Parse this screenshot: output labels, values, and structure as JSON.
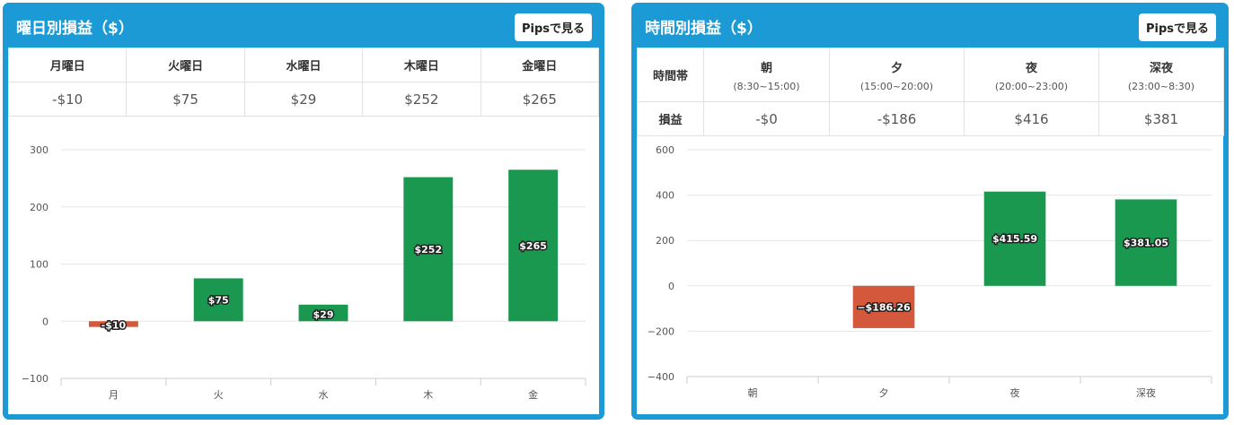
{
  "colors": {
    "panel": "#1b9ad6",
    "positive": "#1a9850",
    "negative": "#d3583c",
    "grid": "#e6e6e6"
  },
  "left": {
    "title": "曜日別損益（$）",
    "pips_button": "Pipsで見る",
    "table": {
      "headers": [
        "月曜日",
        "火曜日",
        "水曜日",
        "木曜日",
        "金曜日"
      ],
      "values": [
        "-$10",
        "$75",
        "$29",
        "$252",
        "$265"
      ]
    }
  },
  "right": {
    "title": "時間別損益（$）",
    "pips_button": "Pipsで見る",
    "table": {
      "row_header_1": "時間帯",
      "row_header_2": "損益",
      "periods": [
        {
          "name": "朝",
          "range": "(8:30~15:00)"
        },
        {
          "name": "夕",
          "range": "(15:00~20:00)"
        },
        {
          "name": "夜",
          "range": "(20:00~23:00)"
        },
        {
          "name": "深夜",
          "range": "(23:00~8:30)"
        }
      ],
      "values": [
        "-$0",
        "-$186",
        "$416",
        "$381"
      ]
    }
  },
  "chart_data": [
    {
      "type": "bar",
      "categories": [
        "月",
        "火",
        "水",
        "木",
        "金"
      ],
      "values": [
        -10,
        75,
        29,
        252,
        265
      ],
      "labels": [
        "-$10",
        "$75",
        "$29",
        "$252",
        "$265"
      ],
      "yticks": [
        "300",
        "200",
        "100",
        "0",
        "−100"
      ],
      "ylim": [
        -100,
        300
      ],
      "grid": true
    },
    {
      "type": "bar",
      "categories": [
        "朝",
        "夕",
        "夜",
        "深夜"
      ],
      "values": [
        0,
        -186.26,
        415.59,
        381.05
      ],
      "labels": [
        "",
        "−$186.26",
        "$415.59",
        "$381.05"
      ],
      "yticks": [
        "600",
        "400",
        "200",
        "0",
        "−200",
        "−400"
      ],
      "ylim": [
        -400,
        600
      ],
      "grid": true
    }
  ]
}
